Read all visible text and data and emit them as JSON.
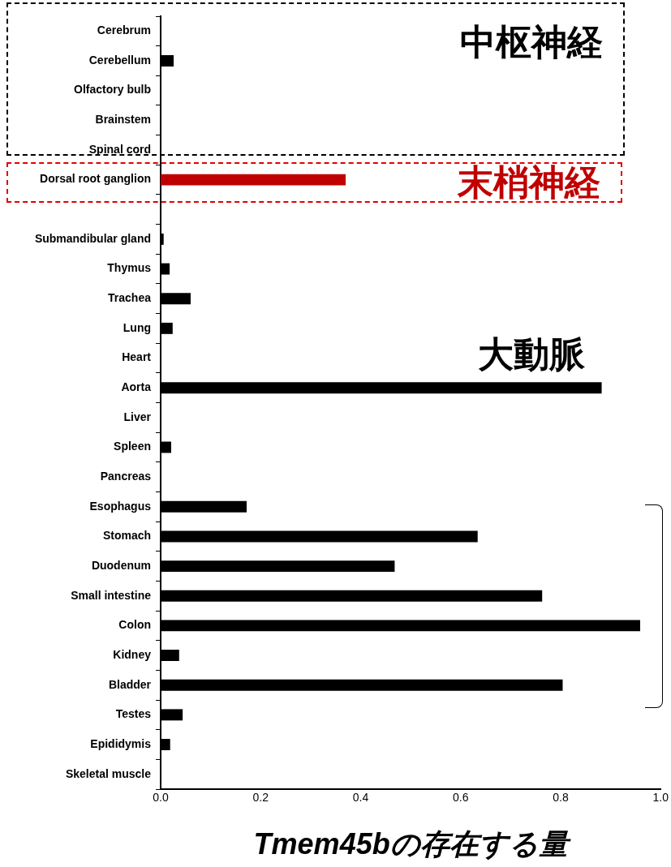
{
  "chart_data": {
    "type": "bar",
    "orientation": "horizontal",
    "xlabel": "Tmem45bの存在する量",
    "categories": [
      "Cerebrum",
      "Cerebellum",
      "Olfactory bulb",
      "Brainstem",
      "Spinal cord",
      "Dorsal root ganglion",
      null,
      "Submandibular gland",
      "Thymus",
      "Trachea",
      "Lung",
      "Heart",
      "Aorta",
      "Liver",
      "Spleen",
      "Pancreas",
      "Esophagus",
      "Stomach",
      "Duodenum",
      "Small intestine",
      "Colon",
      "Kidney",
      "Bladder",
      "Testes",
      "Epididymis",
      "Skeletal muscle"
    ],
    "values": [
      0,
      0.026,
      0,
      0,
      0,
      0.37,
      0,
      0.006,
      0.018,
      0.06,
      0.024,
      0,
      0.882,
      0,
      0.021,
      0,
      0.172,
      0.634,
      0.468,
      0.763,
      0.959,
      0.037,
      0.804,
      0.044,
      0.019,
      0
    ],
    "colors": [
      "#000000",
      "#000000",
      "#000000",
      "#000000",
      "#000000",
      "#c00000",
      "#000000",
      "#000000",
      "#000000",
      "#000000",
      "#000000",
      "#000000",
      "#000000",
      "#000000",
      "#000000",
      "#000000",
      "#000000",
      "#000000",
      "#000000",
      "#000000",
      "#000000",
      "#000000",
      "#000000",
      "#000000",
      "#000000",
      "#000000"
    ],
    "xlim": [
      0,
      1.0
    ],
    "xticks": [
      {
        "value": 0,
        "label": "0.0"
      },
      {
        "value": 0.2,
        "label": "0.2"
      },
      {
        "value": 0.4,
        "label": "0.4"
      },
      {
        "value": 0.6,
        "label": "0.6"
      },
      {
        "value": 0.8,
        "label": "0.8"
      },
      {
        "value": 1,
        "label": "1.0"
      }
    ],
    "grid": false,
    "legend": false,
    "annotations": [
      "中枢神経",
      "末梢神経",
      "大動脈"
    ]
  }
}
